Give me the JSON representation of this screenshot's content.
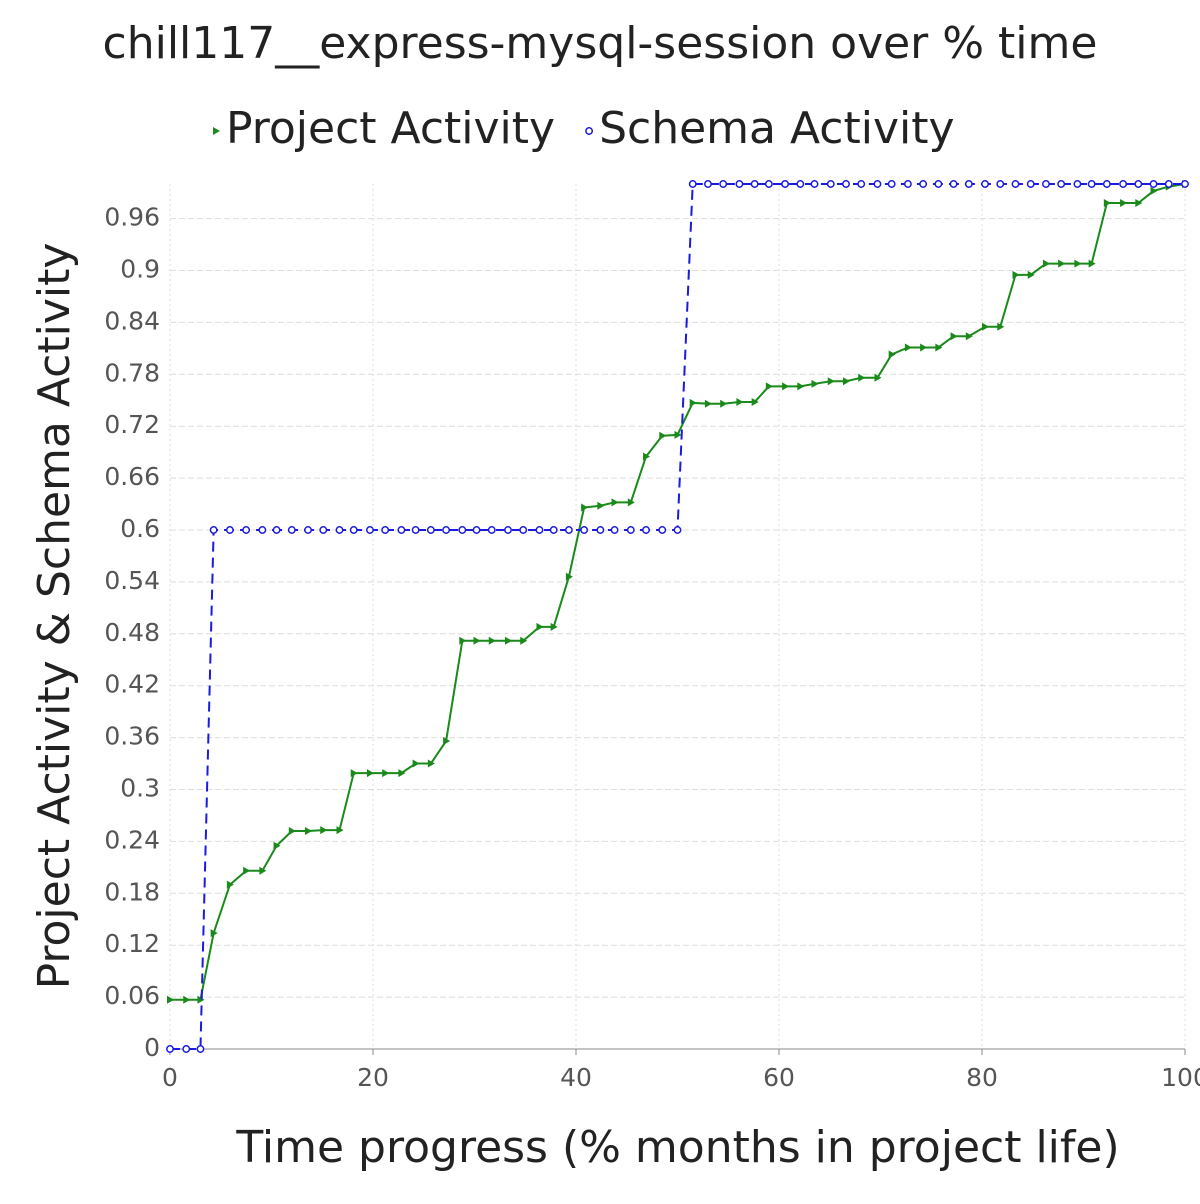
{
  "chart_data": {
    "type": "line",
    "title": "chill117__express-mysql-session over % time",
    "x_label": "Time progress (% months in project life)",
    "y_label": "Project Activity & Schema Activity",
    "x": [
      0,
      1.6,
      3.0,
      4.3,
      5.9,
      7.5,
      9.1,
      10.5,
      12.0,
      13.6,
      15.1,
      16.7,
      18.1,
      19.7,
      21.2,
      22.8,
      24.2,
      25.7,
      27.2,
      28.8,
      30.2,
      31.7,
      33.3,
      34.8,
      36.4,
      37.8,
      39.3,
      40.8,
      42.4,
      43.8,
      45.4,
      46.9,
      48.5,
      50.0,
      51.5,
      53.0,
      54.5,
      56.1,
      57.6,
      59.0,
      60.6,
      62.1,
      63.5,
      65.1,
      66.6,
      68.1,
      69.7,
      71.1,
      72.7,
      74.2,
      75.7,
      77.2,
      78.7,
      80.3,
      81.8,
      83.3,
      84.8,
      86.3,
      87.8,
      89.4,
      90.8,
      92.3,
      93.9,
      95.4,
      96.9,
      98.4,
      100
    ],
    "series": [
      {
        "name": "Project Activity",
        "color": "#1a8a1a",
        "marker": "triangle",
        "values": [
          0.057,
          0.057,
          0.057,
          0.134,
          0.19,
          0.206,
          0.206,
          0.235,
          0.252,
          0.252,
          0.253,
          0.253,
          0.319,
          0.319,
          0.319,
          0.319,
          0.33,
          0.33,
          0.356,
          0.472,
          0.472,
          0.472,
          0.472,
          0.472,
          0.488,
          0.488,
          0.546,
          0.626,
          0.628,
          0.632,
          0.632,
          0.685,
          0.709,
          0.71,
          0.747,
          0.746,
          0.746,
          0.748,
          0.748,
          0.766,
          0.766,
          0.766,
          0.769,
          0.772,
          0.772,
          0.776,
          0.776,
          0.803,
          0.811,
          0.811,
          0.811,
          0.824,
          0.824,
          0.835,
          0.835,
          0.895,
          0.895,
          0.908,
          0.908,
          0.908,
          0.908,
          0.978,
          0.978,
          0.978,
          0.992,
          0.997,
          1.0
        ]
      },
      {
        "name": "Schema Activity",
        "color": "#1a1ae0",
        "marker": "circle",
        "dashed": true,
        "values": [
          0,
          0,
          0,
          0.6,
          0.6,
          0.6,
          0.6,
          0.6,
          0.6,
          0.6,
          0.6,
          0.6,
          0.6,
          0.6,
          0.6,
          0.6,
          0.6,
          0.6,
          0.6,
          0.6,
          0.6,
          0.6,
          0.6,
          0.6,
          0.6,
          0.6,
          0.6,
          0.6,
          0.6,
          0.6,
          0.6,
          0.6,
          0.6,
          0.6,
          1,
          1,
          1,
          1,
          1,
          1,
          1,
          1,
          1,
          1,
          1,
          1,
          1,
          1,
          1,
          1,
          1,
          1,
          1,
          1,
          1,
          1,
          1,
          1,
          1,
          1,
          1,
          1,
          1,
          1,
          1,
          1,
          1
        ]
      }
    ],
    "xlim": [
      0,
      100
    ],
    "xticks": [
      0,
      20,
      40,
      60,
      80,
      100
    ],
    "ylim": [
      0,
      1
    ],
    "yticks": [
      0,
      0.06,
      0.12,
      0.18,
      0.24,
      0.3,
      0.36,
      0.42,
      0.48,
      0.54,
      0.6,
      0.66,
      0.72,
      0.78,
      0.84,
      0.9,
      0.96
    ],
    "grid": true
  }
}
